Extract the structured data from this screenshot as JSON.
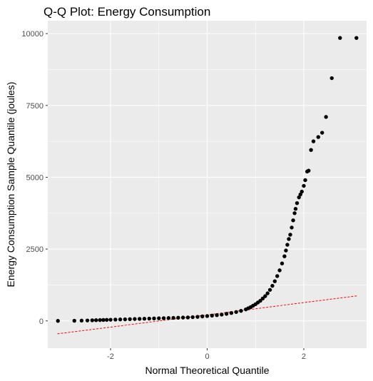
{
  "chart_data": {
    "type": "scatter",
    "title": "Q-Q Plot: Energy Consumption",
    "xlabel": "Normal Theoretical Quantile",
    "ylabel": "Energy Consumption Sample Quantile (joules)",
    "xlim": [
      -3.3,
      3.3
    ],
    "ylim": [
      -950,
      10450
    ],
    "x_ticks": [
      -2,
      0,
      2
    ],
    "x_tick_labels": [
      "-2",
      "0",
      "2"
    ],
    "y_ticks": [
      0,
      2500,
      5000,
      7500,
      10000
    ],
    "y_tick_labels": [
      "0",
      "2500",
      "5000",
      "7500",
      "10000"
    ],
    "grid": true,
    "reference_line": {
      "x": [
        -3.1,
        3.1
      ],
      "y": [
        -450,
        870
      ],
      "color": "#ff0000",
      "style": "dashed"
    },
    "point_color": "#000000",
    "panel_background": "#ebebeb",
    "points": {
      "x": [
        -3.09,
        -2.75,
        -2.6,
        -2.48,
        -2.38,
        -2.3,
        -2.22,
        -2.15,
        -2.08,
        -2.0,
        -1.9,
        -1.8,
        -1.7,
        -1.6,
        -1.5,
        -1.4,
        -1.3,
        -1.2,
        -1.1,
        -1.0,
        -0.9,
        -0.8,
        -0.7,
        -0.6,
        -0.5,
        -0.4,
        -0.3,
        -0.2,
        -0.1,
        0.0,
        0.1,
        0.2,
        0.3,
        0.4,
        0.5,
        0.6,
        0.7,
        0.8,
        0.85,
        0.9,
        0.95,
        1.0,
        1.05,
        1.1,
        1.15,
        1.2,
        1.25,
        1.3,
        1.35,
        1.4,
        1.45,
        1.5,
        1.55,
        1.6,
        1.63,
        1.66,
        1.69,
        1.72,
        1.75,
        1.78,
        1.81,
        1.83,
        1.86,
        1.9,
        1.93,
        1.96,
        2.0,
        2.03,
        2.07,
        2.1,
        2.15,
        2.2,
        2.3,
        2.38,
        2.46,
        2.58,
        2.75,
        3.09
      ],
      "y": [
        0,
        5,
        10,
        15,
        20,
        25,
        28,
        32,
        36,
        40,
        45,
        50,
        55,
        60,
        65,
        70,
        75,
        80,
        85,
        90,
        95,
        100,
        105,
        110,
        115,
        120,
        130,
        140,
        155,
        170,
        185,
        200,
        220,
        245,
        275,
        310,
        350,
        400,
        440,
        480,
        530,
        580,
        640,
        700,
        780,
        860,
        960,
        1080,
        1220,
        1380,
        1560,
        1760,
        2000,
        2250,
        2450,
        2650,
        2850,
        3000,
        3250,
        3500,
        3750,
        3900,
        4100,
        4300,
        4400,
        4500,
        4700,
        4900,
        5200,
        5230,
        5950,
        6250,
        6400,
        6550,
        7100,
        8450,
        9850,
        9850
      ]
    }
  }
}
